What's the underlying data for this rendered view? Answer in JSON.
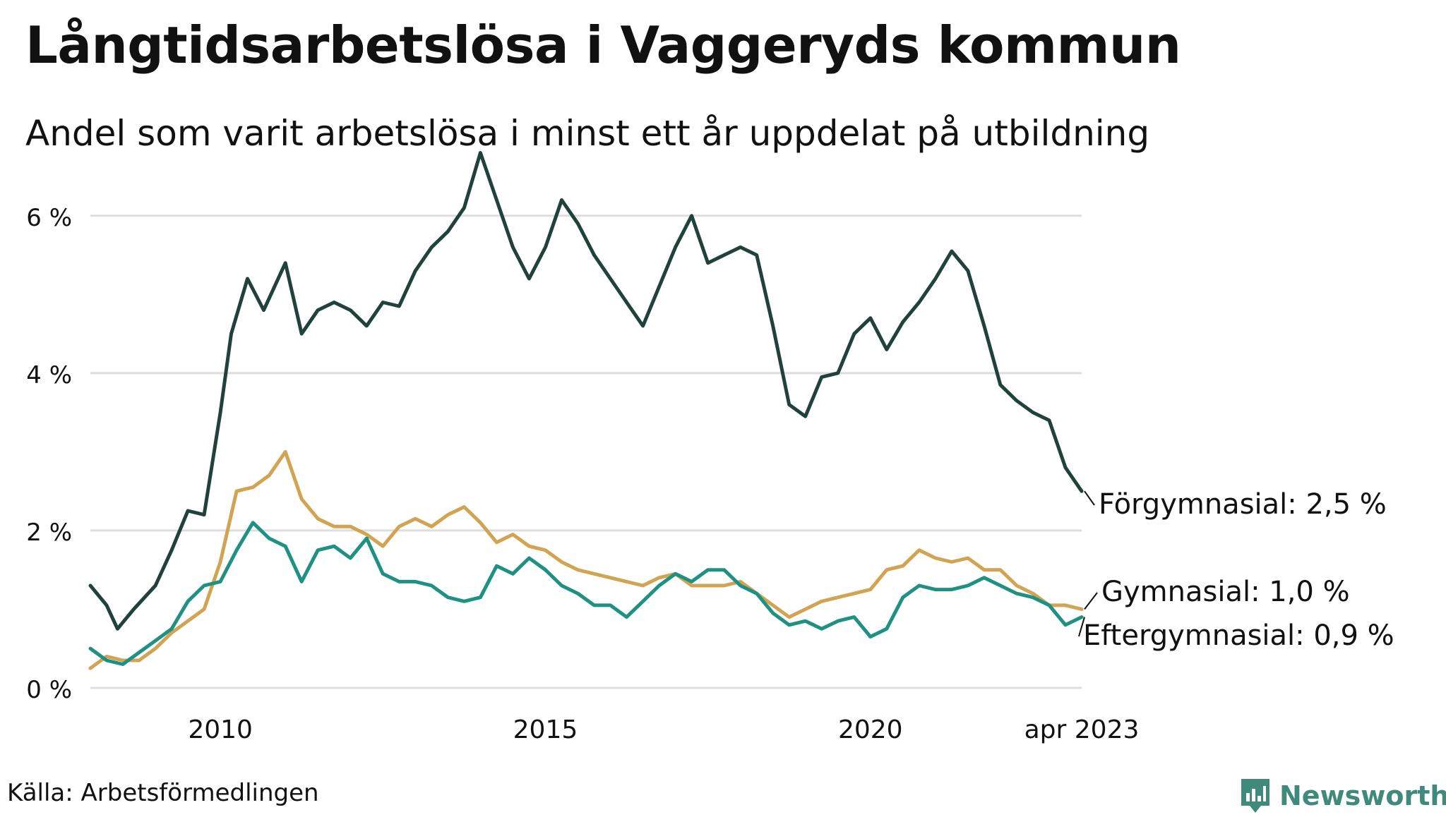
{
  "title": "Långtidsarbetslösa i Vaggeryds kommun",
  "subtitle": "Andel som varit arbetslösa i minst ett år uppdelat på utbildning",
  "source": "Källa: Arbetsförmedlingen",
  "brand": "Newsworthy",
  "chart_data": {
    "type": "line",
    "x_start": "2008-01",
    "x_end": "2023-04",
    "x_ticks": [
      {
        "date": "2010-01",
        "label": "2010"
      },
      {
        "date": "2015-01",
        "label": "2015"
      },
      {
        "date": "2020-01",
        "label": "2020"
      },
      {
        "date": "2023-04",
        "label": "apr 2023"
      }
    ],
    "ylim": [
      0,
      6.5
    ],
    "y_ticks": [
      {
        "value": 0,
        "label": "0 %"
      },
      {
        "value": 2,
        "label": "2 %"
      },
      {
        "value": 4,
        "label": "4 %"
      },
      {
        "value": 6,
        "label": "6 %"
      }
    ],
    "grid": true,
    "series": [
      {
        "name": "Förgymnasial",
        "end_label": "Förgymnasial: 2,5 %",
        "color": "#21423b",
        "points": [
          [
            "2008-01",
            1.3
          ],
          [
            "2008-04",
            1.05
          ],
          [
            "2008-06",
            0.75
          ],
          [
            "2008-09",
            1.0
          ],
          [
            "2009-01",
            1.3
          ],
          [
            "2009-04",
            1.75
          ],
          [
            "2009-07",
            2.25
          ],
          [
            "2009-10",
            2.2
          ],
          [
            "2010-01",
            3.5
          ],
          [
            "2010-03",
            4.5
          ],
          [
            "2010-06",
            5.2
          ],
          [
            "2010-09",
            4.8
          ],
          [
            "2011-01",
            5.4
          ],
          [
            "2011-04",
            4.5
          ],
          [
            "2011-07",
            4.8
          ],
          [
            "2011-10",
            4.9
          ],
          [
            "2012-01",
            4.8
          ],
          [
            "2012-04",
            4.6
          ],
          [
            "2012-07",
            4.9
          ],
          [
            "2012-10",
            4.85
          ],
          [
            "2013-01",
            5.3
          ],
          [
            "2013-04",
            5.6
          ],
          [
            "2013-07",
            5.8
          ],
          [
            "2013-10",
            6.1
          ],
          [
            "2014-01",
            6.8
          ],
          [
            "2014-04",
            6.2
          ],
          [
            "2014-07",
            5.6
          ],
          [
            "2014-10",
            5.2
          ],
          [
            "2015-01",
            5.6
          ],
          [
            "2015-04",
            6.2
          ],
          [
            "2015-07",
            5.9
          ],
          [
            "2015-10",
            5.5
          ],
          [
            "2016-01",
            5.2
          ],
          [
            "2016-04",
            4.9
          ],
          [
            "2016-07",
            4.6
          ],
          [
            "2016-10",
            5.1
          ],
          [
            "2017-01",
            5.6
          ],
          [
            "2017-04",
            6.0
          ],
          [
            "2017-07",
            5.4
          ],
          [
            "2017-10",
            5.5
          ],
          [
            "2018-01",
            5.6
          ],
          [
            "2018-04",
            5.5
          ],
          [
            "2018-07",
            4.6
          ],
          [
            "2018-10",
            3.6
          ],
          [
            "2019-01",
            3.45
          ],
          [
            "2019-04",
            3.95
          ],
          [
            "2019-07",
            4.0
          ],
          [
            "2019-10",
            4.5
          ],
          [
            "2020-01",
            4.7
          ],
          [
            "2020-04",
            4.3
          ],
          [
            "2020-07",
            4.65
          ],
          [
            "2020-10",
            4.9
          ],
          [
            "2021-01",
            5.2
          ],
          [
            "2021-04",
            5.55
          ],
          [
            "2021-07",
            5.3
          ],
          [
            "2021-10",
            4.6
          ],
          [
            "2022-01",
            3.85
          ],
          [
            "2022-04",
            3.65
          ],
          [
            "2022-07",
            3.5
          ],
          [
            "2022-10",
            3.4
          ],
          [
            "2023-01",
            2.8
          ],
          [
            "2023-04",
            2.5
          ]
        ]
      },
      {
        "name": "Gymnasial",
        "end_label": "Gymnasial: 1,0 %",
        "color": "#d1a453",
        "points": [
          [
            "2008-01",
            0.25
          ],
          [
            "2008-04",
            0.4
          ],
          [
            "2008-07",
            0.35
          ],
          [
            "2008-10",
            0.35
          ],
          [
            "2009-01",
            0.5
          ],
          [
            "2009-04",
            0.7
          ],
          [
            "2009-07",
            0.85
          ],
          [
            "2009-10",
            1.0
          ],
          [
            "2010-01",
            1.6
          ],
          [
            "2010-04",
            2.5
          ],
          [
            "2010-07",
            2.55
          ],
          [
            "2010-10",
            2.7
          ],
          [
            "2011-01",
            3.0
          ],
          [
            "2011-04",
            2.4
          ],
          [
            "2011-07",
            2.15
          ],
          [
            "2011-10",
            2.05
          ],
          [
            "2012-01",
            2.05
          ],
          [
            "2012-04",
            1.95
          ],
          [
            "2012-07",
            1.8
          ],
          [
            "2012-10",
            2.05
          ],
          [
            "2013-01",
            2.15
          ],
          [
            "2013-04",
            2.05
          ],
          [
            "2013-07",
            2.2
          ],
          [
            "2013-10",
            2.3
          ],
          [
            "2014-01",
            2.1
          ],
          [
            "2014-04",
            1.85
          ],
          [
            "2014-07",
            1.95
          ],
          [
            "2014-10",
            1.8
          ],
          [
            "2015-01",
            1.75
          ],
          [
            "2015-04",
            1.6
          ],
          [
            "2015-07",
            1.5
          ],
          [
            "2015-10",
            1.45
          ],
          [
            "2016-01",
            1.4
          ],
          [
            "2016-04",
            1.35
          ],
          [
            "2016-07",
            1.3
          ],
          [
            "2016-10",
            1.4
          ],
          [
            "2017-01",
            1.45
          ],
          [
            "2017-04",
            1.3
          ],
          [
            "2017-07",
            1.3
          ],
          [
            "2017-10",
            1.3
          ],
          [
            "2018-01",
            1.35
          ],
          [
            "2018-04",
            1.2
          ],
          [
            "2018-07",
            1.05
          ],
          [
            "2018-10",
            0.9
          ],
          [
            "2019-01",
            1.0
          ],
          [
            "2019-04",
            1.1
          ],
          [
            "2019-07",
            1.15
          ],
          [
            "2019-10",
            1.2
          ],
          [
            "2020-01",
            1.25
          ],
          [
            "2020-04",
            1.5
          ],
          [
            "2020-07",
            1.55
          ],
          [
            "2020-10",
            1.75
          ],
          [
            "2021-01",
            1.65
          ],
          [
            "2021-04",
            1.6
          ],
          [
            "2021-07",
            1.65
          ],
          [
            "2021-10",
            1.5
          ],
          [
            "2022-01",
            1.5
          ],
          [
            "2022-04",
            1.3
          ],
          [
            "2022-07",
            1.2
          ],
          [
            "2022-10",
            1.05
          ],
          [
            "2023-01",
            1.05
          ],
          [
            "2023-04",
            1.0
          ]
        ]
      },
      {
        "name": "Eftergymnasial",
        "end_label": "Eftergymnasial: 0,9 %",
        "color": "#1e9182",
        "points": [
          [
            "2008-01",
            0.5
          ],
          [
            "2008-04",
            0.35
          ],
          [
            "2008-07",
            0.3
          ],
          [
            "2008-10",
            0.45
          ],
          [
            "2009-01",
            0.6
          ],
          [
            "2009-04",
            0.75
          ],
          [
            "2009-07",
            1.1
          ],
          [
            "2009-10",
            1.3
          ],
          [
            "2010-01",
            1.35
          ],
          [
            "2010-04",
            1.75
          ],
          [
            "2010-07",
            2.1
          ],
          [
            "2010-10",
            1.9
          ],
          [
            "2011-01",
            1.8
          ],
          [
            "2011-04",
            1.35
          ],
          [
            "2011-07",
            1.75
          ],
          [
            "2011-10",
            1.8
          ],
          [
            "2012-01",
            1.65
          ],
          [
            "2012-04",
            1.9
          ],
          [
            "2012-07",
            1.45
          ],
          [
            "2012-10",
            1.35
          ],
          [
            "2013-01",
            1.35
          ],
          [
            "2013-04",
            1.3
          ],
          [
            "2013-07",
            1.15
          ],
          [
            "2013-10",
            1.1
          ],
          [
            "2014-01",
            1.15
          ],
          [
            "2014-04",
            1.55
          ],
          [
            "2014-07",
            1.45
          ],
          [
            "2014-10",
            1.65
          ],
          [
            "2015-01",
            1.5
          ],
          [
            "2015-04",
            1.3
          ],
          [
            "2015-07",
            1.2
          ],
          [
            "2015-10",
            1.05
          ],
          [
            "2016-01",
            1.05
          ],
          [
            "2016-04",
            0.9
          ],
          [
            "2016-07",
            1.1
          ],
          [
            "2016-10",
            1.3
          ],
          [
            "2017-01",
            1.45
          ],
          [
            "2017-04",
            1.35
          ],
          [
            "2017-07",
            1.5
          ],
          [
            "2017-10",
            1.5
          ],
          [
            "2018-01",
            1.3
          ],
          [
            "2018-04",
            1.2
          ],
          [
            "2018-07",
            0.95
          ],
          [
            "2018-10",
            0.8
          ],
          [
            "2019-01",
            0.85
          ],
          [
            "2019-04",
            0.75
          ],
          [
            "2019-07",
            0.85
          ],
          [
            "2019-10",
            0.9
          ],
          [
            "2020-01",
            0.65
          ],
          [
            "2020-04",
            0.75
          ],
          [
            "2020-07",
            1.15
          ],
          [
            "2020-10",
            1.3
          ],
          [
            "2021-01",
            1.25
          ],
          [
            "2021-04",
            1.25
          ],
          [
            "2021-07",
            1.3
          ],
          [
            "2021-10",
            1.4
          ],
          [
            "2022-01",
            1.3
          ],
          [
            "2022-04",
            1.2
          ],
          [
            "2022-07",
            1.15
          ],
          [
            "2022-10",
            1.05
          ],
          [
            "2023-01",
            0.8
          ],
          [
            "2023-04",
            0.9
          ]
        ]
      }
    ]
  }
}
